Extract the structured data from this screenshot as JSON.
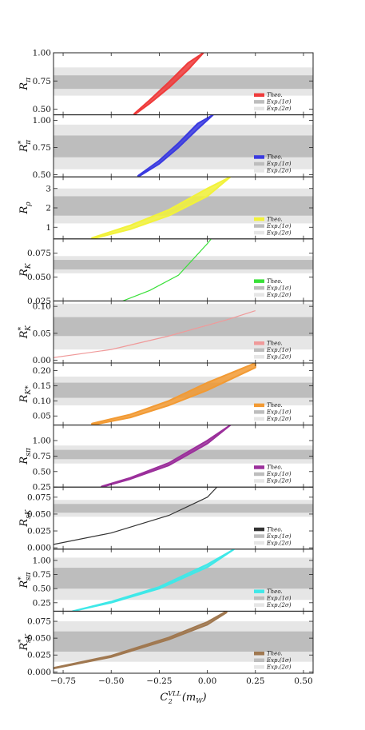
{
  "chart_data": [
    {
      "type": "area",
      "ylabel": "R_π",
      "ysub": "π",
      "ysup": "",
      "ylim": [
        0.45,
        1.0
      ],
      "yticks": [
        0.5,
        0.75,
        1.0
      ],
      "tick_labels": [
        "0.50",
        "0.75",
        "1.00"
      ],
      "exp_1sigma": [
        0.68,
        0.8
      ],
      "exp_2sigma": [
        0.62,
        0.87
      ],
      "theory": {
        "color": "#ef3b3b",
        "x": [
          -0.38,
          -0.3,
          -0.2,
          -0.1,
          -0.02
        ],
        "lower": [
          0.45,
          0.55,
          0.69,
          0.85,
          1.0
        ],
        "upper": [
          0.46,
          0.58,
          0.74,
          0.91,
          1.0
        ]
      },
      "legend": [
        "Theo.",
        "Exp.(1σ)",
        "Exp.(2σ)"
      ]
    },
    {
      "type": "area",
      "ylabel": "R*_π",
      "ysub": "π",
      "ysup": "*",
      "ylim": [
        0.48,
        1.05
      ],
      "yticks": [
        0.5,
        0.75,
        1.0
      ],
      "tick_labels": [
        "0.50",
        "0.75",
        "1.00"
      ],
      "exp_1sigma": [
        0.66,
        0.86
      ],
      "exp_2sigma": [
        0.55,
        0.96
      ],
      "theory": {
        "color": "#3a3ae0",
        "x": [
          -0.36,
          -0.25,
          -0.15,
          -0.05,
          0.03
        ],
        "lower": [
          0.48,
          0.6,
          0.75,
          0.92,
          1.05
        ],
        "upper": [
          0.49,
          0.63,
          0.79,
          0.97,
          1.05
        ]
      },
      "legend": [
        "Theo.",
        "Exp.(1σ)",
        "Exp.(2σ)"
      ]
    },
    {
      "type": "area",
      "ylabel": "R_ρ",
      "ysub": "ρ",
      "ysup": "",
      "ylim": [
        0.4,
        3.6
      ],
      "yticks": [
        1,
        2,
        3
      ],
      "tick_labels": [
        "1",
        "2",
        "3"
      ],
      "exp_1sigma": [
        1.6,
        2.6
      ],
      "exp_2sigma": [
        1.2,
        3.0
      ],
      "theory": {
        "color": "#f2f23a",
        "x": [
          -0.6,
          -0.4,
          -0.2,
          0.0,
          0.12
        ],
        "lower": [
          0.4,
          0.9,
          1.6,
          2.6,
          3.6
        ],
        "upper": [
          0.45,
          1.1,
          1.9,
          3.0,
          3.6
        ]
      },
      "legend": [
        "Theo.",
        "Exp.(1σ)",
        "Exp.(2σ)"
      ]
    },
    {
      "type": "line",
      "ylabel": "R_K",
      "ysub": "K",
      "ysup": "",
      "ylim": [
        0.025,
        0.09
      ],
      "yticks": [
        0.025,
        0.05,
        0.075
      ],
      "tick_labels": [
        "0.025",
        "0.050",
        "0.075"
      ],
      "exp_1sigma": [
        0.058,
        0.068
      ],
      "exp_2sigma": [
        0.054,
        0.072
      ],
      "theory": {
        "color": "#39e039",
        "x": [
          -0.44,
          -0.3,
          -0.15,
          0.0,
          0.02
        ],
        "lower": [
          0.025,
          0.036,
          0.052,
          0.085,
          0.09
        ],
        "upper": [
          0.025,
          0.036,
          0.052,
          0.085,
          0.09
        ]
      },
      "legend": [
        "Theo.",
        "Exp.(1σ)",
        "Exp.(2σ)"
      ]
    },
    {
      "type": "line",
      "ylabel": "R*_K",
      "ysub": "K",
      "ysup": "*",
      "ylim": [
        -0.005,
        0.11
      ],
      "yticks": [
        0.0,
        0.05,
        0.1
      ],
      "tick_labels": [
        "0.00",
        "0.05",
        "0.10"
      ],
      "exp_1sigma": [
        0.045,
        0.08
      ],
      "exp_2sigma": [
        0.02,
        0.105
      ],
      "theory": {
        "color": "#f09a9a",
        "x": [
          -0.8,
          -0.5,
          -0.2,
          0.1,
          0.25
        ],
        "lower": [
          0.005,
          0.02,
          0.045,
          0.075,
          0.092
        ],
        "upper": [
          0.005,
          0.02,
          0.045,
          0.075,
          0.092
        ]
      },
      "legend": [
        "Theo.",
        "Exp.(1σ)",
        "Exp.(2σ)"
      ]
    },
    {
      "type": "area",
      "ylabel": "R_K*",
      "ysub": "K*",
      "ysup": "",
      "ylim": [
        0.02,
        0.225
      ],
      "yticks": [
        0.05,
        0.1,
        0.15,
        0.2
      ],
      "tick_labels": [
        "0.05",
        "0.10",
        "0.15",
        "0.20"
      ],
      "exp_1sigma": [
        0.11,
        0.16
      ],
      "exp_2sigma": [
        0.085,
        0.18
      ],
      "theory": {
        "color": "#f29a33",
        "x": [
          -0.6,
          -0.4,
          -0.2,
          0.0,
          0.25
        ],
        "lower": [
          0.02,
          0.045,
          0.085,
          0.135,
          0.21
        ],
        "upper": [
          0.025,
          0.055,
          0.1,
          0.16,
          0.225
        ]
      },
      "legend": [
        "Theo.",
        "Exp.(1σ)",
        "Exp.(2σ)"
      ]
    },
    {
      "type": "area",
      "ylabel": "R_sπ",
      "ysub": "sπ",
      "ysup": "",
      "ylim": [
        0.25,
        1.25
      ],
      "yticks": [
        0.25,
        0.5,
        0.75,
        1.0
      ],
      "tick_labels": [
        "0.25",
        "0.50",
        "0.75",
        "1.00"
      ],
      "exp_1sigma": [
        0.7,
        0.85
      ],
      "exp_2sigma": [
        0.63,
        0.92
      ],
      "theory": {
        "color": "#9b2f9b",
        "x": [
          -0.55,
          -0.4,
          -0.2,
          0.0,
          0.12
        ],
        "lower": [
          0.25,
          0.38,
          0.6,
          0.95,
          1.25
        ],
        "upper": [
          0.26,
          0.4,
          0.64,
          1.0,
          1.25
        ]
      },
      "legend": [
        "Theo.",
        "Exp.(1σ)",
        "Exp.(2σ)"
      ]
    },
    {
      "type": "line",
      "ylabel": "R_sK",
      "ysub": "sK",
      "ysup": "",
      "ylim": [
        -0.002,
        0.09
      ],
      "yticks": [
        0.0,
        0.025,
        0.05,
        0.075
      ],
      "tick_labels": [
        "0.000",
        "0.025",
        "0.050",
        "0.075"
      ],
      "exp_1sigma": [
        0.052,
        0.065
      ],
      "exp_2sigma": [
        0.046,
        0.071
      ],
      "theory": {
        "color": "#333333",
        "x": [
          -0.8,
          -0.5,
          -0.2,
          0.0,
          0.05
        ],
        "lower": [
          0.005,
          0.022,
          0.048,
          0.075,
          0.09
        ],
        "upper": [
          0.005,
          0.022,
          0.048,
          0.075,
          0.09
        ]
      },
      "legend": [
        "Theo.",
        "Exp.(1σ)",
        "Exp.(2σ)"
      ]
    },
    {
      "type": "area",
      "ylabel": "R*_sπ",
      "ysub": "sπ",
      "ysup": "*",
      "ylim": [
        0.1,
        1.2
      ],
      "yticks": [
        0.25,
        0.5,
        0.75,
        1.0
      ],
      "tick_labels": [
        "0.25",
        "0.50",
        "0.75",
        "1.00"
      ],
      "exp_1sigma": [
        0.5,
        0.87
      ],
      "exp_2sigma": [
        0.3,
        1.05
      ],
      "theory": {
        "color": "#3fe8e8",
        "x": [
          -0.7,
          -0.5,
          -0.25,
          0.0,
          0.14
        ],
        "lower": [
          0.1,
          0.25,
          0.5,
          0.88,
          1.2
        ],
        "upper": [
          0.1,
          0.27,
          0.53,
          0.93,
          1.2
        ]
      },
      "legend": [
        "Theo.",
        "Exp.(1σ)",
        "Exp.(2σ)"
      ]
    },
    {
      "type": "area",
      "ylabel": "R*_sK",
      "ysub": "sK",
      "ysup": "*",
      "ylim": [
        -0.002,
        0.09
      ],
      "yticks": [
        0.0,
        0.025,
        0.05,
        0.075
      ],
      "tick_labels": [
        "0.000",
        "0.025",
        "0.050",
        "0.075"
      ],
      "exp_1sigma": [
        0.03,
        0.06
      ],
      "exp_2sigma": [
        0.015,
        0.075
      ],
      "theory": {
        "color": "#a07850",
        "x": [
          -0.8,
          -0.5,
          -0.2,
          0.0,
          0.1
        ],
        "lower": [
          0.005,
          0.022,
          0.048,
          0.07,
          0.088
        ],
        "upper": [
          0.006,
          0.024,
          0.051,
          0.074,
          0.09
        ]
      },
      "legend": [
        "Theo.",
        "Exp.(1σ)",
        "Exp.(2σ)"
      ]
    }
  ],
  "shared_x": {
    "xlim": [
      -0.8,
      0.55
    ],
    "xticks": [
      -0.75,
      -0.5,
      -0.25,
      0.0,
      0.25,
      0.5
    ],
    "tick_labels": [
      "−0.75",
      "−0.50",
      "−0.25",
      "0.00",
      "0.25",
      "0.50"
    ],
    "xlabel_main": "C",
    "xlabel_sup": "VLL",
    "xlabel_sub": "2",
    "xlabel_arg": "(m",
    "xlabel_arg_sub": "W",
    "xlabel_close": ")"
  },
  "colors": {
    "exp_1sigma": "#bdbdbd",
    "exp_2sigma": "#e6e6e6",
    "frame": "#222222"
  }
}
